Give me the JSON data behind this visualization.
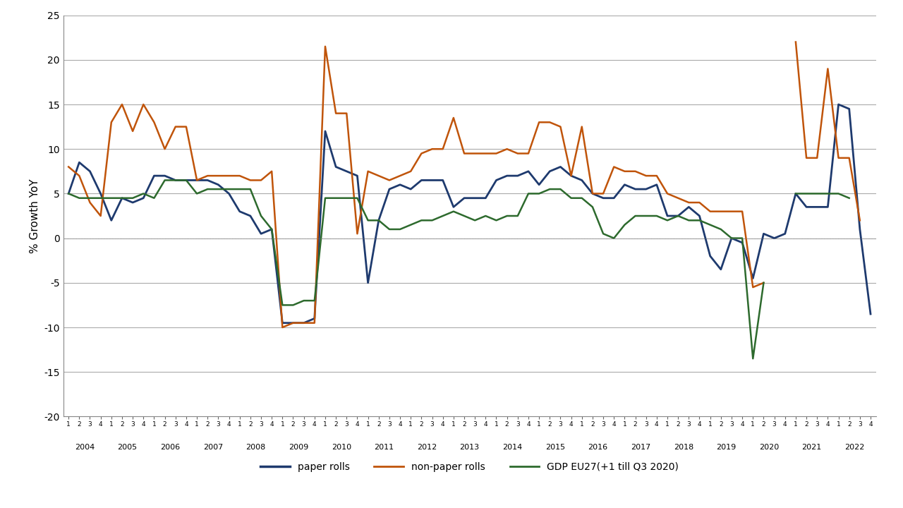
{
  "ylabel": "% Growth YoY",
  "ylim": [
    -20,
    25
  ],
  "yticks": [
    -20,
    -15,
    -10,
    -5,
    0,
    5,
    10,
    15,
    20,
    25
  ],
  "background_color": "#ffffff",
  "paper_rolls_color": "#1e3a6e",
  "non_paper_rolls_color": "#c0540a",
  "gdp_color": "#2d6a2d",
  "paper_rolls": [
    5.0,
    8.5,
    7.5,
    5.0,
    2.0,
    4.5,
    4.0,
    4.5,
    7.0,
    7.0,
    6.5,
    6.5,
    6.5,
    6.5,
    6.0,
    5.0,
    3.0,
    2.5,
    0.5,
    1.0,
    -9.5,
    -9.5,
    -9.5,
    -9.0,
    12.0,
    8.0,
    7.5,
    7.0,
    -5.0,
    2.0,
    5.5,
    6.0,
    5.5,
    6.5,
    6.5,
    6.5,
    3.5,
    4.5,
    4.5,
    4.5,
    6.5,
    7.0,
    7.0,
    7.5,
    6.0,
    7.5,
    8.0,
    7.0,
    6.5,
    5.0,
    4.5,
    4.5,
    6.0,
    5.5,
    5.5,
    6.0,
    2.5,
    2.5,
    3.5,
    2.5,
    -2.0,
    -3.5,
    0.0,
    -0.5,
    -4.5,
    0.5,
    0.0,
    0.5,
    5.0,
    3.5,
    3.5,
    3.5,
    15.0,
    14.5,
    1.0,
    -8.5
  ],
  "non_paper_rolls": [
    8.0,
    7.0,
    4.0,
    2.5,
    13.0,
    15.0,
    12.0,
    15.0,
    13.0,
    10.0,
    12.5,
    12.5,
    6.5,
    7.0,
    7.0,
    7.0,
    7.0,
    6.5,
    6.5,
    7.5,
    -10.0,
    -9.5,
    -9.5,
    -9.5,
    21.5,
    14.0,
    14.0,
    0.5,
    7.5,
    7.0,
    6.5,
    7.0,
    7.5,
    9.5,
    10.0,
    10.0,
    13.5,
    9.5,
    9.5,
    9.5,
    9.5,
    10.0,
    9.5,
    9.5,
    13.0,
    13.0,
    12.5,
    7.0,
    12.5,
    5.0,
    5.0,
    8.0,
    7.5,
    7.5,
    7.0,
    7.0,
    5.0,
    4.5,
    4.0,
    4.0,
    3.0,
    3.0,
    3.0,
    3.0,
    -5.5,
    -5.0,
    null,
    null,
    22.0,
    9.0,
    9.0,
    19.0,
    9.0,
    9.0,
    2.0,
    null
  ],
  "gdp": [
    5.0,
    4.5,
    4.5,
    4.5,
    4.5,
    4.5,
    4.5,
    5.0,
    4.5,
    6.5,
    6.5,
    6.5,
    5.0,
    5.5,
    5.5,
    5.5,
    5.5,
    5.5,
    2.5,
    1.0,
    -7.5,
    -7.5,
    -7.0,
    -7.0,
    4.5,
    4.5,
    4.5,
    4.5,
    2.0,
    2.0,
    1.0,
    1.0,
    1.5,
    2.0,
    2.0,
    2.5,
    3.0,
    2.5,
    2.0,
    2.5,
    2.0,
    2.5,
    2.5,
    5.0,
    5.0,
    5.5,
    5.5,
    4.5,
    4.5,
    3.5,
    0.5,
    0.0,
    1.5,
    2.5,
    2.5,
    2.5,
    2.0,
    2.5,
    2.0,
    2.0,
    1.5,
    1.0,
    0.0,
    0.0,
    -13.5,
    -5.0,
    null,
    null,
    5.0,
    5.0,
    5.0,
    5.0,
    5.0,
    4.5,
    null,
    null
  ]
}
